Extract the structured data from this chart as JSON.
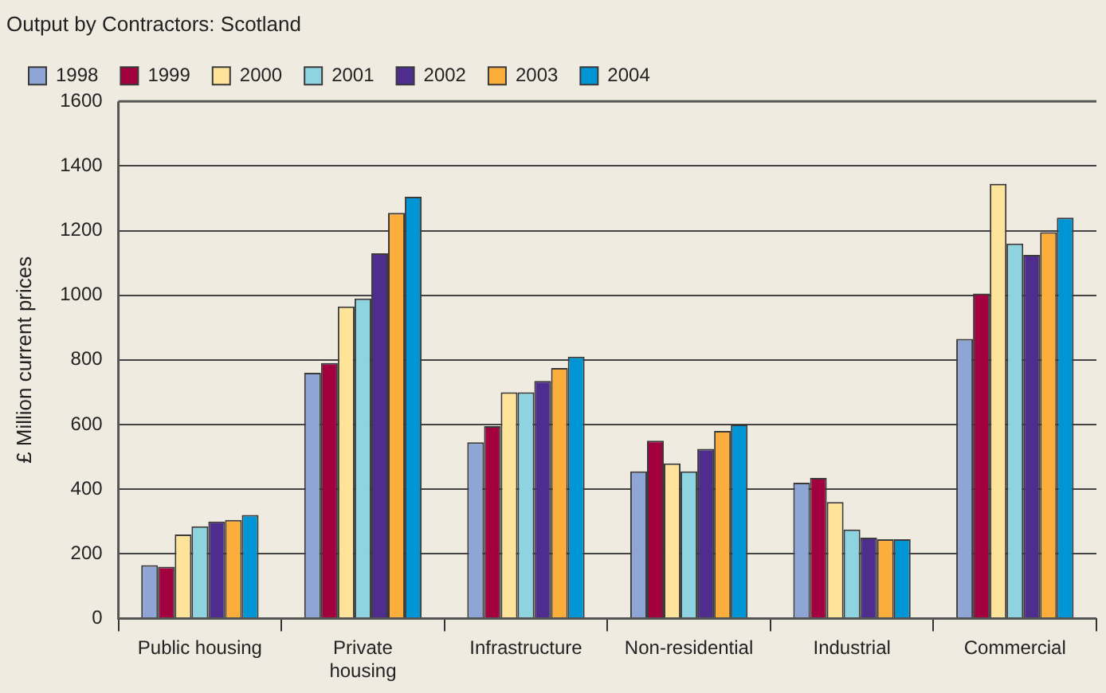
{
  "chart_data": {
    "type": "bar",
    "title": "Output by Contractors: Scotland",
    "ylabel": "£ Million current prices",
    "categories": [
      "Public housing",
      "Private housing",
      "Infrastructure",
      "Non-residential",
      "Industrial",
      "Commercial"
    ],
    "series": [
      {
        "name": "1998",
        "color": "#8ea5d6",
        "values": [
          165,
          760,
          545,
          455,
          420,
          865
        ]
      },
      {
        "name": "1999",
        "color": "#a3003f",
        "values": [
          160,
          790,
          595,
          550,
          435,
          1005
        ]
      },
      {
        "name": "2000",
        "color": "#fee39a",
        "values": [
          260,
          965,
          700,
          480,
          360,
          1345
        ]
      },
      {
        "name": "2001",
        "color": "#8dd3e0",
        "values": [
          285,
          990,
          700,
          455,
          275,
          1160
        ]
      },
      {
        "name": "2002",
        "color": "#4f2d8e",
        "values": [
          300,
          1130,
          735,
          525,
          250,
          1125
        ]
      },
      {
        "name": "2003",
        "color": "#fbae3c",
        "values": [
          305,
          1255,
          775,
          580,
          245,
          1195
        ]
      },
      {
        "name": "2004",
        "color": "#0096d6",
        "values": [
          320,
          1305,
          810,
          600,
          245,
          1240
        ]
      }
    ],
    "ylim": [
      0,
      1600
    ],
    "yticks": [
      0,
      200,
      400,
      600,
      800,
      1000,
      1200,
      1400,
      1600
    ],
    "grid": "y",
    "legend": "top"
  }
}
